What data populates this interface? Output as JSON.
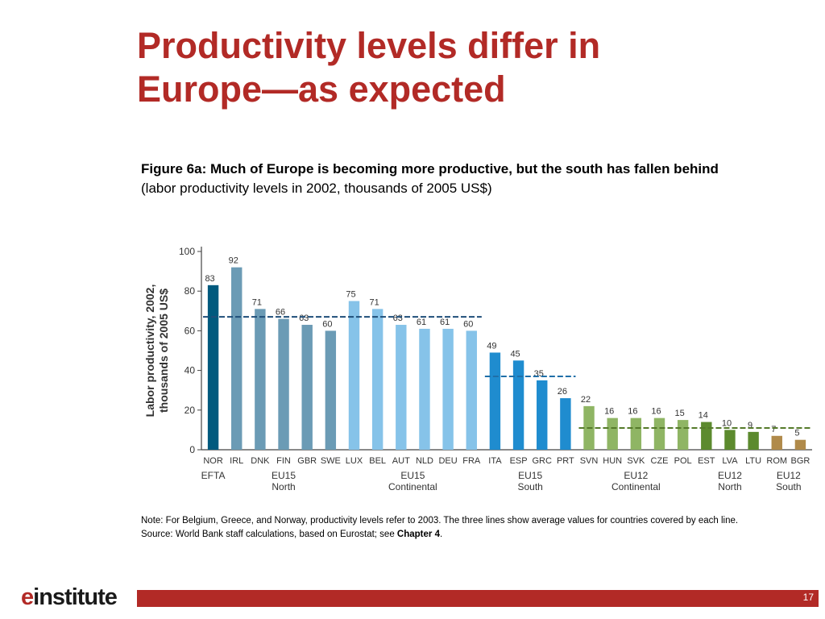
{
  "slide": {
    "title_line1": "Productivity levels differ in",
    "title_line2": "Europe—as expected",
    "figure_title": "Figure 6a: Much of Europe is becoming more productive, but the south has fallen behind",
    "figure_subtitle": "(labor productivity levels in 2002, thousands of 2005 US$)",
    "note": "Note: For Belgium, Greece, and Norway, productivity levels refer to 2003. The three lines show average values for countries covered by each line.",
    "source_prefix": "Source: World Bank staff calculations, based on Eurostat; see ",
    "source_link": "Chapter 4",
    "source_suffix": ".",
    "logo_e": "e",
    "logo_rest": "institute",
    "page_number": "17"
  },
  "chart_data": {
    "type": "bar",
    "ylabel_line1": "Labor productivity, 2002,",
    "ylabel_line2": "thousands of 2005 US$",
    "ylim": [
      0,
      100
    ],
    "yticks": [
      0,
      20,
      40,
      60,
      80,
      100
    ],
    "categories": [
      "NOR",
      "IRL",
      "DNK",
      "FIN",
      "GBR",
      "SWE",
      "LUX",
      "BEL",
      "AUT",
      "NLD",
      "DEU",
      "FRA",
      "ITA",
      "ESP",
      "GRC",
      "PRT",
      "SVN",
      "HUN",
      "SVK",
      "CZE",
      "POL",
      "EST",
      "LVA",
      "LTU",
      "ROM",
      "BGR"
    ],
    "values": [
      83,
      92,
      71,
      66,
      63,
      60,
      75,
      71,
      63,
      61,
      61,
      60,
      49,
      45,
      35,
      26,
      22,
      16,
      16,
      16,
      15,
      14,
      10,
      9,
      7,
      5
    ],
    "groups": [
      {
        "line1": "EFTA",
        "line2": "",
        "start": 0,
        "end": 0,
        "color": "#005a7e"
      },
      {
        "line1": "EU15",
        "line2": "North",
        "start": 1,
        "end": 5,
        "color": "#6b9bb5"
      },
      {
        "line1": "EU15",
        "line2": "Continental",
        "start": 6,
        "end": 11,
        "color": "#86c3e9"
      },
      {
        "line1": "EU15",
        "line2": "South",
        "start": 12,
        "end": 15,
        "color": "#1f8ccf"
      },
      {
        "line1": "EU12",
        "line2": "Continental",
        "start": 16,
        "end": 20,
        "color": "#8fb564"
      },
      {
        "line1": "EU12",
        "line2": "North",
        "start": 21,
        "end": 23,
        "color": "#5c8a2e"
      },
      {
        "line1": "EU12",
        "line2": "South",
        "start": 24,
        "end": 25,
        "color": "#b08a4a"
      }
    ],
    "average_lines": [
      {
        "from": 0,
        "to": 11,
        "value": 67,
        "color": "#1f4e79"
      },
      {
        "from": 12,
        "to": 15,
        "value": 37,
        "color": "#1f6fa8"
      },
      {
        "from": 16,
        "to": 25,
        "value": 11,
        "color": "#557a2a"
      }
    ],
    "grid": false,
    "legend": "none"
  }
}
